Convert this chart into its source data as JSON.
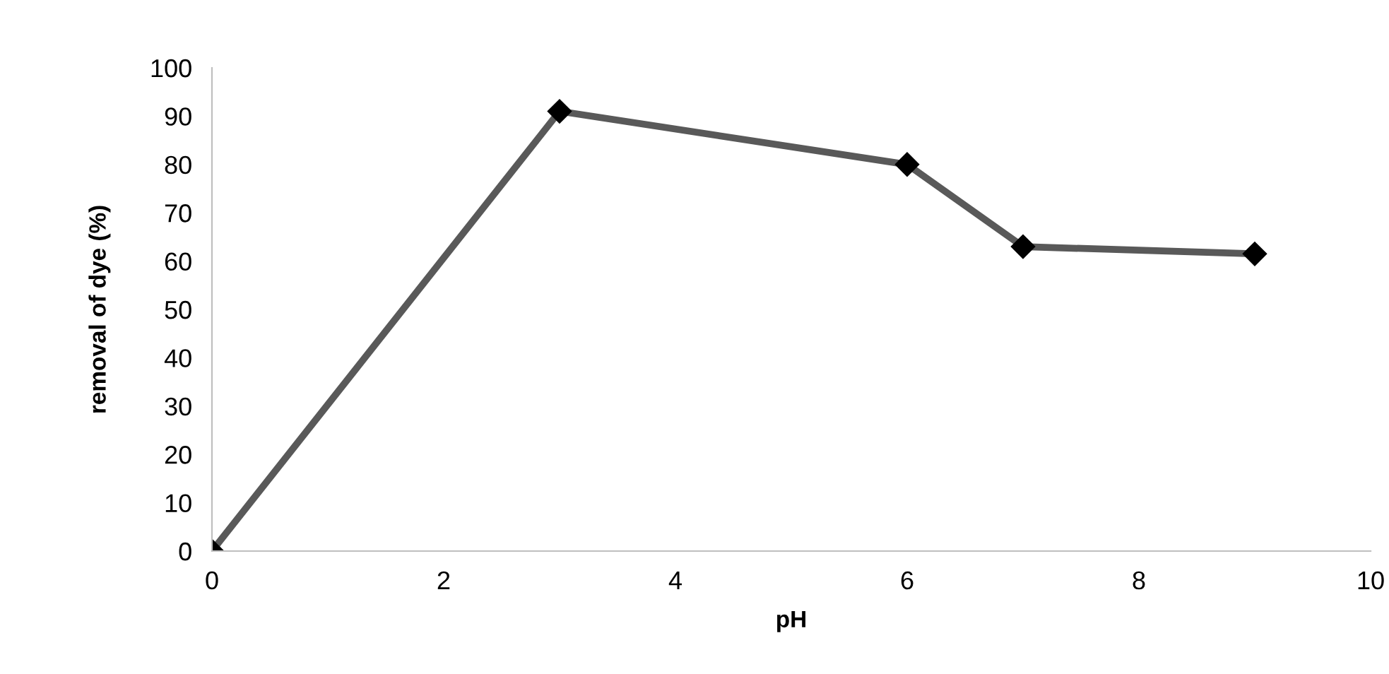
{
  "chart_data": {
    "type": "line",
    "xlabel": "pH",
    "ylabel": "removal of dye (%)",
    "x": [
      0,
      3,
      6,
      7,
      9
    ],
    "series": [
      {
        "color": "#595959",
        "values": [
          0,
          91,
          80,
          63,
          61.5
        ]
      }
    ],
    "xlim": [
      0,
      10
    ],
    "xticks": [
      0,
      2,
      4,
      6,
      8,
      10
    ],
    "ylim": [
      0,
      100
    ],
    "yticks": [
      0,
      10,
      20,
      30,
      40,
      50,
      60,
      70,
      80,
      90,
      100
    ],
    "marker": "diamond",
    "line_style": "solid",
    "grid": false,
    "legend": false
  }
}
